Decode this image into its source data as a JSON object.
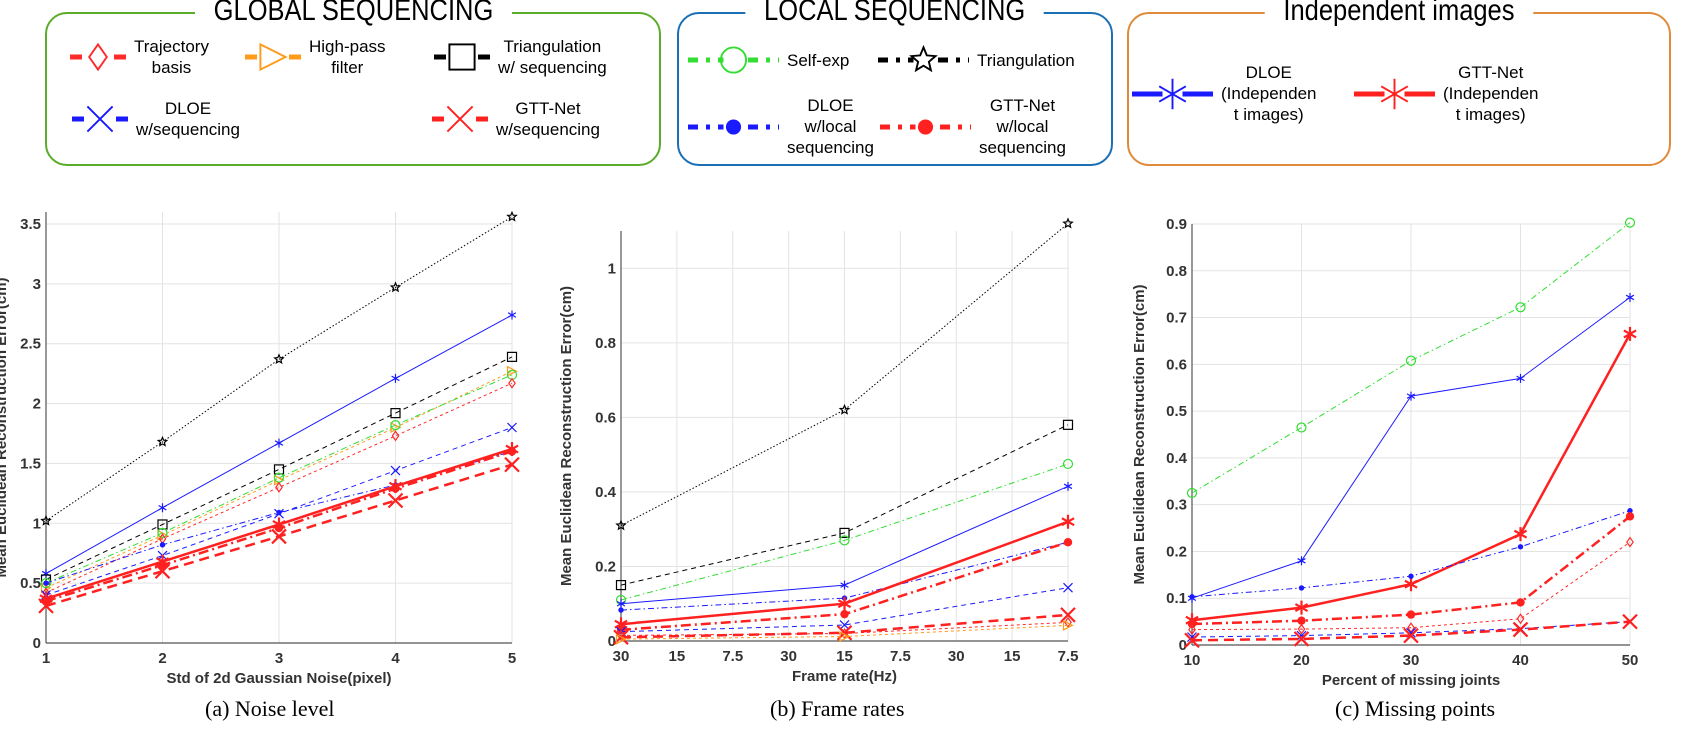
{
  "legend": {
    "groups": [
      {
        "title": "GLOBAL SEQUENCING",
        "color": "#5aac2a"
      },
      {
        "title": "LOCAL SEQUENCING",
        "color": "#1a6fb5"
      },
      {
        "title": "Independent images",
        "color": "#e08a3c"
      }
    ],
    "items": {
      "traj": "Trajectory\nbasis",
      "hp": "High-pass\nfilter",
      "triseq": "Triangulation\nw/ sequencing",
      "dloeseq": "DLOE\nw/sequencing",
      "gttseq": "GTT-Net\nw/sequencing",
      "selfexp": "Self-exp",
      "tri": "Triangulation",
      "dloeloc": "DLOE\nw/local\nsequencing",
      "gttloc": "GTT-Net\nw/local\nsequencing",
      "dloeind": "DLOE\n(Independen\nt images)",
      "gttind": "GTT-Net\n(Independen\nt images)"
    }
  },
  "styles": {
    "traj": {
      "color": "#ff2a2a",
      "dash": "dashed-fine",
      "width": 1,
      "marker": "diamond"
    },
    "hp": {
      "color": "#ff9a1a",
      "dash": "dashed-fine",
      "width": 1,
      "marker": "triangle-right"
    },
    "triseq": {
      "color": "#000000",
      "dash": "dashed",
      "width": 1,
      "marker": "square"
    },
    "dloeseq": {
      "color": "#1a1aff",
      "dash": "dashed",
      "width": 1,
      "marker": "x"
    },
    "gttseq": {
      "color": "#ff2020",
      "dash": "dashed-thick",
      "width": 2.5,
      "marker": "x-large"
    },
    "selfexp": {
      "color": "#33dd33",
      "dash": "dash-dot",
      "width": 1,
      "marker": "circle"
    },
    "tri": {
      "color": "#000000",
      "dash": "dotted",
      "width": 1,
      "marker": "star"
    },
    "dloeloc": {
      "color": "#1a1aff",
      "dash": "dash-dot",
      "width": 1,
      "marker": "dot"
    },
    "gttloc": {
      "color": "#ff2020",
      "dash": "dash-dot-thick",
      "width": 2.5,
      "marker": "dot-large"
    },
    "dloeind": {
      "color": "#1a1aff",
      "dash": "solid",
      "width": 1,
      "marker": "asterisk"
    },
    "gttind": {
      "color": "#ff2020",
      "dash": "solid",
      "width": 2.5,
      "marker": "asterisk-large"
    }
  },
  "chart_data": [
    {
      "type": "line",
      "caption": "(a) Noise level",
      "xlabel": "Std of 2d Gaussian Noise(pixel)",
      "ylabel": "Mean Euclidean Reconstruction Error(cm)",
      "xticks": [
        "1",
        "2",
        "3",
        "4",
        "5"
      ],
      "x": [
        0,
        1,
        2,
        3,
        4
      ],
      "xlim": [
        0,
        4
      ],
      "ylim": [
        0,
        3.6
      ],
      "yticks": [
        "0",
        "0.5",
        "1",
        "1.5",
        "2",
        "2.5",
        "3",
        "3.5"
      ],
      "ytick_values": [
        0,
        0.5,
        1,
        1.5,
        2,
        2.5,
        3,
        3.5
      ],
      "grid": true,
      "series": [
        {
          "key": "tri",
          "values": [
            1.02,
            1.68,
            2.37,
            2.97,
            3.56
          ]
        },
        {
          "key": "dloeind",
          "values": [
            0.58,
            1.13,
            1.67,
            2.21,
            2.74
          ]
        },
        {
          "key": "triseq",
          "values": [
            0.53,
            0.99,
            1.45,
            1.92,
            2.39
          ]
        },
        {
          "key": "hp",
          "values": [
            0.46,
            0.9,
            1.36,
            1.8,
            2.27
          ]
        },
        {
          "key": "selfexp",
          "values": [
            0.5,
            0.92,
            1.38,
            1.82,
            2.24
          ]
        },
        {
          "key": "traj",
          "values": [
            0.42,
            0.87,
            1.3,
            1.73,
            2.17
          ]
        },
        {
          "key": "dloeseq",
          "values": [
            0.4,
            0.73,
            1.08,
            1.44,
            1.8
          ]
        },
        {
          "key": "dloeloc",
          "values": [
            0.5,
            0.82,
            1.09,
            1.32,
            1.6
          ]
        },
        {
          "key": "gttloc",
          "values": [
            0.35,
            0.65,
            0.96,
            1.29,
            1.6
          ]
        },
        {
          "key": "gttind",
          "values": [
            0.37,
            0.68,
            0.99,
            1.31,
            1.62
          ]
        },
        {
          "key": "gttseq",
          "values": [
            0.31,
            0.6,
            0.89,
            1.19,
            1.49
          ]
        }
      ]
    },
    {
      "type": "line",
      "caption": "(b) Frame rates",
      "xlabel": "Frame rate(Hz)",
      "ylabel": "Mean Euclidean Reconstruction Error(cm)",
      "xticks": [
        "30",
        "15",
        "7.5",
        "30",
        "15",
        "7.5",
        "30",
        "15",
        "7.5"
      ],
      "x": [
        0,
        4,
        8
      ],
      "xlim": [
        0,
        8
      ],
      "ylim": [
        0,
        1.1
      ],
      "yticks": [
        "0",
        "0.2",
        "0.4",
        "0.6",
        "0.8",
        "1"
      ],
      "ytick_values": [
        0,
        0.2,
        0.4,
        0.6,
        0.8,
        1
      ],
      "grid": true,
      "series": [
        {
          "key": "tri",
          "values": [
            0.31,
            0.62,
            1.12
          ]
        },
        {
          "key": "triseq",
          "values": [
            0.15,
            0.29,
            0.58
          ]
        },
        {
          "key": "selfexp",
          "values": [
            0.11,
            0.27,
            0.475
          ]
        },
        {
          "key": "dloeind",
          "values": [
            0.1,
            0.15,
            0.415
          ]
        },
        {
          "key": "dloeloc",
          "values": [
            0.083,
            0.115,
            0.265
          ]
        },
        {
          "key": "gttind",
          "values": [
            0.045,
            0.1,
            0.32
          ]
        },
        {
          "key": "gttloc",
          "values": [
            0.03,
            0.072,
            0.265
          ]
        },
        {
          "key": "dloeseq",
          "values": [
            0.025,
            0.043,
            0.143
          ]
        },
        {
          "key": "traj",
          "values": [
            0.015,
            0.02,
            0.05
          ]
        },
        {
          "key": "gttseq",
          "values": [
            0.01,
            0.022,
            0.07
          ]
        },
        {
          "key": "hp",
          "values": [
            0.005,
            0.012,
            0.042
          ]
        }
      ]
    },
    {
      "type": "line",
      "caption": "(c) Missing points",
      "xlabel": "Percent of missing joints",
      "ylabel": "Mean Euclidean Reconstruction Error(cm)",
      "xticks": [
        "10",
        "20",
        "30",
        "40",
        "50"
      ],
      "x": [
        0,
        1,
        2,
        3,
        4
      ],
      "xlim": [
        0,
        4
      ],
      "ylim": [
        0,
        0.9
      ],
      "yticks": [
        "0",
        "0.1",
        "0.2",
        "0.3",
        "0.4",
        "0.5",
        "0.6",
        "0.7",
        "0.8",
        "0.9"
      ],
      "ytick_values": [
        0,
        0.1,
        0.2,
        0.3,
        0.4,
        0.5,
        0.6,
        0.7,
        0.8,
        0.9
      ],
      "grid": true,
      "series": [
        {
          "key": "selfexp",
          "values": [
            0.325,
            0.465,
            0.608,
            0.722,
            0.903
          ]
        },
        {
          "key": "dloeind",
          "values": [
            0.1,
            0.18,
            0.532,
            0.57,
            0.743
          ]
        },
        {
          "key": "gttind",
          "values": [
            0.053,
            0.08,
            0.13,
            0.237,
            0.665
          ]
        },
        {
          "key": "dloeloc",
          "values": [
            0.103,
            0.122,
            0.147,
            0.21,
            0.287
          ]
        },
        {
          "key": "gttloc",
          "values": [
            0.045,
            0.052,
            0.065,
            0.091,
            0.275
          ]
        },
        {
          "key": "traj",
          "values": [
            0.033,
            0.034,
            0.037,
            0.056,
            0.22
          ]
        },
        {
          "key": "dloeseq",
          "values": [
            0.017,
            0.02,
            0.026,
            0.035,
            0.05
          ]
        },
        {
          "key": "gttseq",
          "values": [
            0.01,
            0.013,
            0.02,
            0.033,
            0.05
          ]
        }
      ]
    }
  ]
}
